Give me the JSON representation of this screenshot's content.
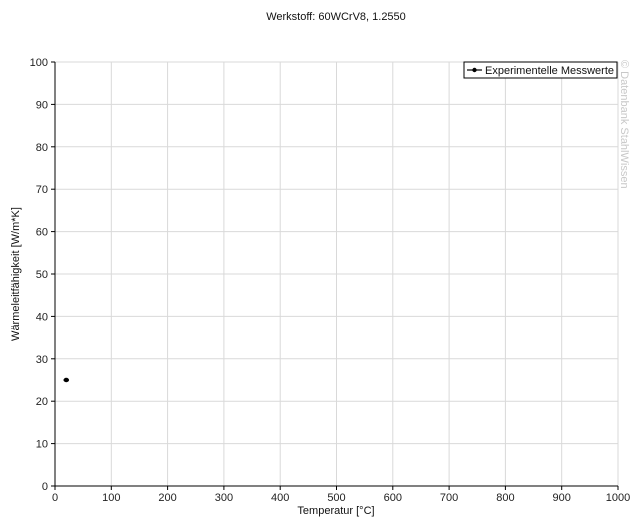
{
  "chart_data": {
    "type": "scatter",
    "title": "Werkstoff: 60WCrV8, 1.2550",
    "xlabel": "Temperatur [°C]",
    "ylabel": "Wärmeleitfähigkeit [W/m*K]",
    "xlim": [
      0,
      1000
    ],
    "ylim": [
      0,
      100
    ],
    "xticks": [
      0,
      100,
      200,
      300,
      400,
      500,
      600,
      700,
      800,
      900,
      1000
    ],
    "yticks": [
      0,
      10,
      20,
      30,
      40,
      50,
      60,
      70,
      80,
      90,
      100
    ],
    "grid": true,
    "legend_position": "top-right",
    "series": [
      {
        "name": "Experimentelle Messwerte",
        "color": "#000000",
        "points": [
          {
            "x": 20,
            "y": 25
          }
        ]
      }
    ],
    "watermark": "© Datenbank StahlWissen"
  }
}
